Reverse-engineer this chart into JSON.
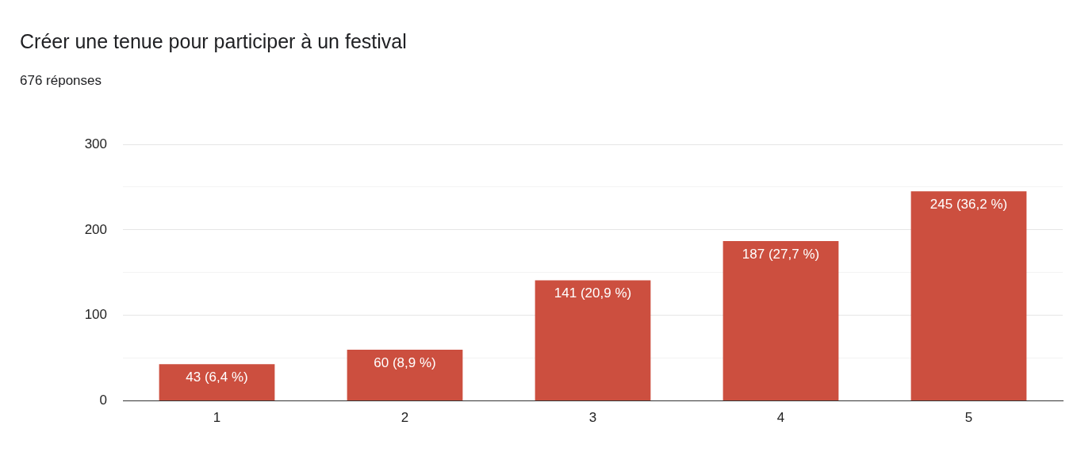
{
  "chart_data": {
    "type": "bar",
    "title": "Créer une tenue pour participer à un festival",
    "subtitle": "676 réponses",
    "categories": [
      "1",
      "2",
      "3",
      "4",
      "5"
    ],
    "values": [
      43,
      60,
      141,
      187,
      245
    ],
    "value_labels": [
      "43 (6,4 %)",
      "60 (8,9 %)",
      "141 (20,9 %)",
      "187 (27,7 %)",
      "245 (36,2 %)"
    ],
    "color": "#cc4f3f",
    "ylim": [
      0,
      300
    ],
    "yticks": [
      0,
      {
        "value": 50,
        "label": null
      },
      100,
      {
        "value": 150,
        "label": null
      },
      200,
      {
        "value": 250,
        "label": null
      },
      300
    ],
    "grid": "y"
  }
}
